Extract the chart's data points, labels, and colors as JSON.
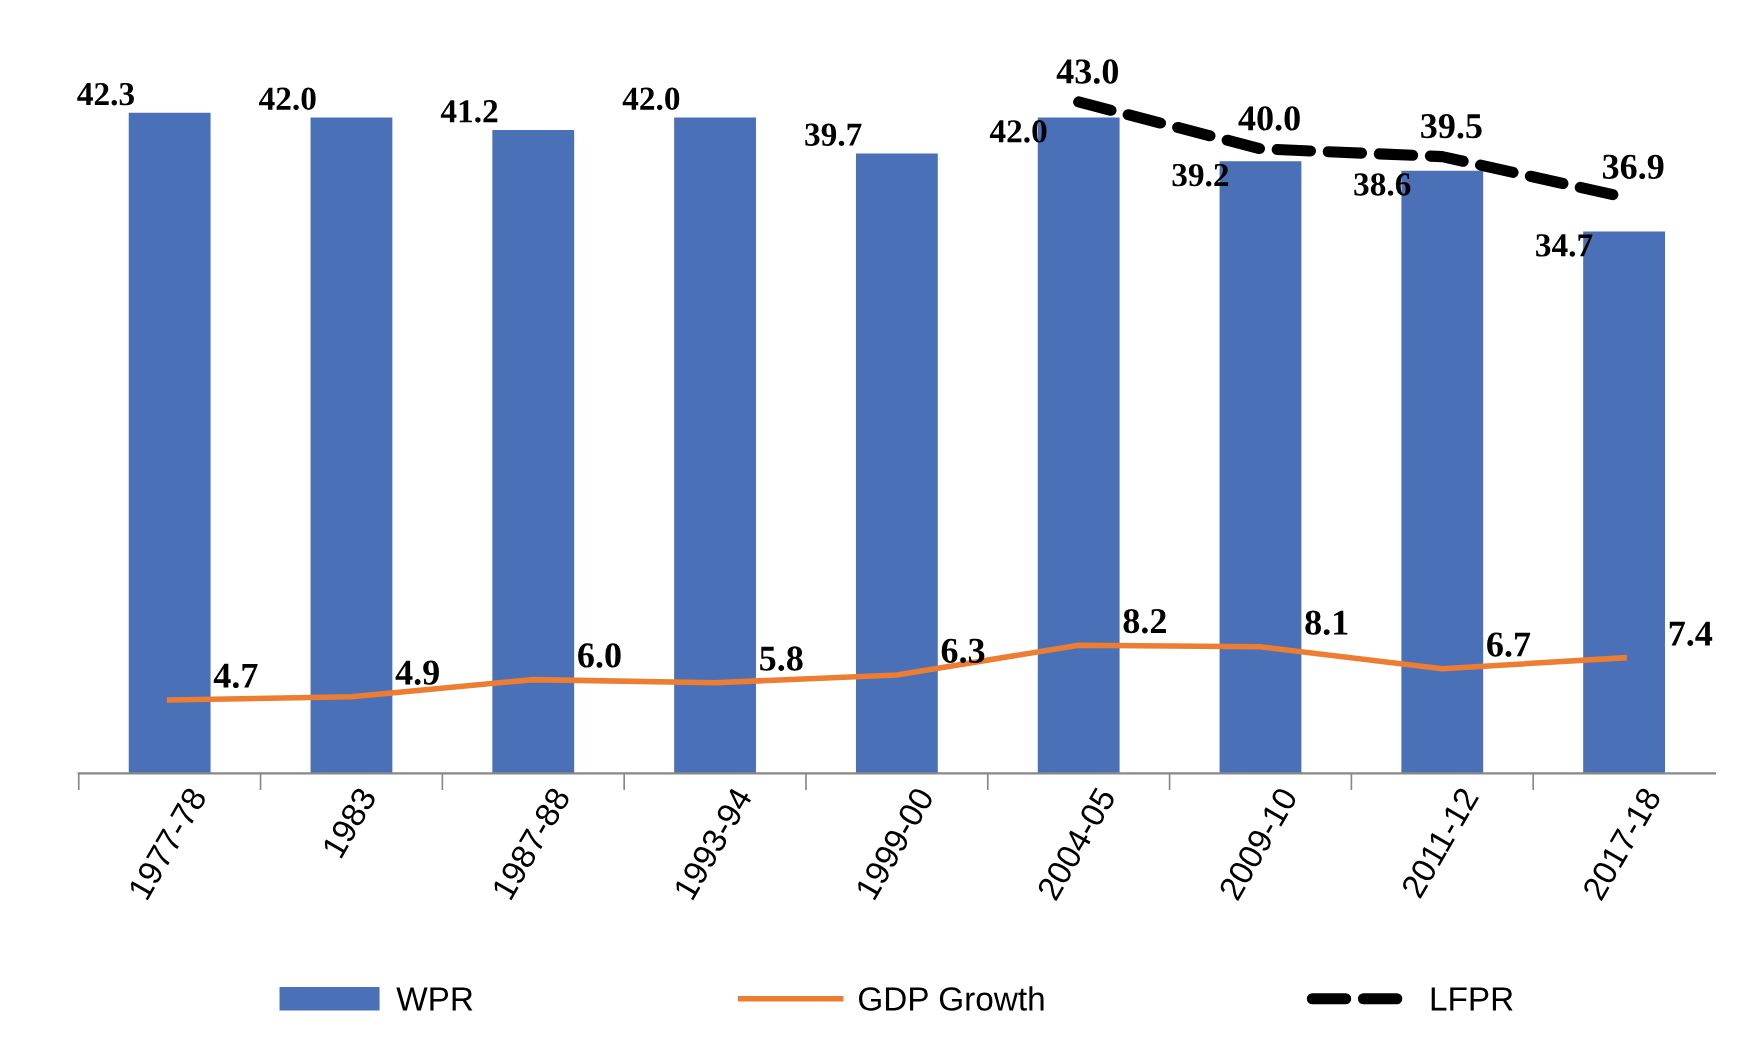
{
  "chart_data": {
    "type": "bar",
    "categories": [
      "1977-78",
      "1983",
      "1987-88",
      "1993-94",
      "1999-00",
      "2004-05",
      "2009-10",
      "2011-12",
      "2017-18"
    ],
    "series": [
      {
        "name": "WPR",
        "color": "#4a70b8",
        "values": [
          42.3,
          42.0,
          41.2,
          42.0,
          39.7,
          42.0,
          39.2,
          38.6,
          34.7
        ],
        "value_labels": [
          "42.3",
          "42.0",
          "41.2",
          "42.0",
          "39.7",
          "42.0",
          "39.2",
          "38.6",
          "34.7"
        ]
      },
      {
        "name": "GDP Growth",
        "type": "line",
        "color": "#ed7d31",
        "line_style": "solid",
        "values": [
          4.7,
          4.9,
          6.0,
          5.8,
          6.3,
          8.2,
          8.1,
          6.7,
          7.4
        ],
        "value_labels": [
          "4.7",
          "4.9",
          "6.0",
          "5.8",
          "6.3",
          "8.2",
          "8.1",
          "6.7",
          "7.4"
        ]
      },
      {
        "name": "LFPR",
        "type": "line",
        "color": "#000000",
        "line_style": "dashed",
        "values": [
          null,
          null,
          null,
          null,
          null,
          43.0,
          40.0,
          39.5,
          36.9
        ],
        "value_labels": [
          null,
          null,
          null,
          null,
          null,
          "43.0",
          "40.0",
          "39.5",
          "36.9"
        ]
      }
    ],
    "tick_labels": "x",
    "grid": false,
    "legend": "bottom"
  }
}
